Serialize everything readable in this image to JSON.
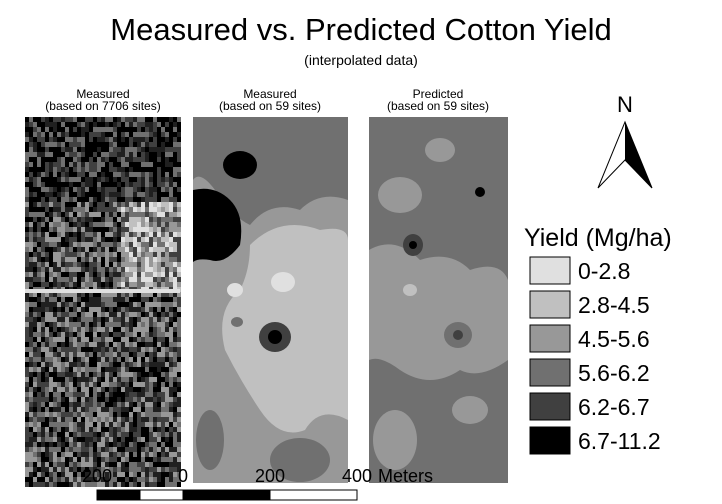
{
  "title": "Measured vs. Predicted Cotton Yield",
  "subtitle": "(interpolated data)",
  "panels": [
    {
      "label": "Measured",
      "sublabel": "(based on 7706 sites)"
    },
    {
      "label": "Measured",
      "sublabel": "(based on 59 sites)"
    },
    {
      "label": "Predicted",
      "sublabel": "(based on 59 sites)"
    }
  ],
  "north": "N",
  "legend": {
    "title": "Yield (Mg/ha)",
    "items": [
      {
        "label": "0-2.8",
        "color": "#e0e0e0"
      },
      {
        "label": "2.8-4.5",
        "color": "#c0c0c0"
      },
      {
        "label": "4.5-5.6",
        "color": "#989898"
      },
      {
        "label": "5.6-6.2",
        "color": "#707070"
      },
      {
        "label": "6.2-6.7",
        "color": "#404040"
      },
      {
        "label": "6.7-11.2",
        "color": "#000000"
      }
    ]
  },
  "scale_bar": {
    "labels": [
      "200",
      "0",
      "200",
      "400"
    ],
    "unit": "Meters"
  }
}
